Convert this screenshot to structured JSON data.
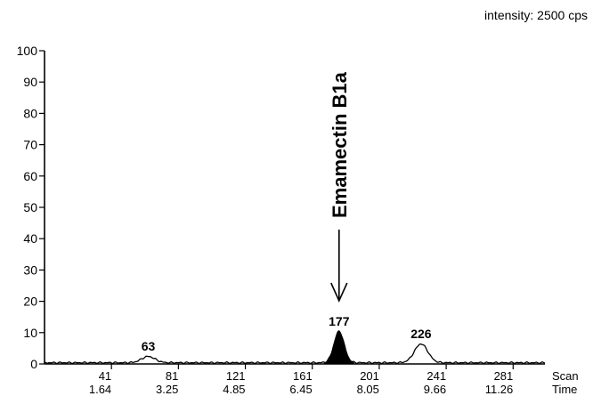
{
  "header": {
    "intensity": "intensity: 2500 cps"
  },
  "chart_data": {
    "type": "line",
    "title": "",
    "ylabel": "",
    "ylim": [
      0,
      100
    ],
    "yticks": [
      0,
      10,
      20,
      30,
      40,
      50,
      60,
      70,
      80,
      90,
      100
    ],
    "xlim": [
      1,
      300
    ],
    "xlabel_scan": "Scan",
    "xlabel_time": "Time",
    "xticks": [
      {
        "scan": 41,
        "scan_label": "41",
        "time_label": "1.64"
      },
      {
        "scan": 81,
        "scan_label": "81",
        "time_label": "3.25"
      },
      {
        "scan": 121,
        "scan_label": "121",
        "time_label": "4.85"
      },
      {
        "scan": 161,
        "scan_label": "161",
        "time_label": "6.45"
      },
      {
        "scan": 201,
        "scan_label": "201",
        "time_label": "8.05"
      },
      {
        "scan": 241,
        "scan_label": "241",
        "time_label": "9.66"
      },
      {
        "scan": 281,
        "scan_label": "281",
        "time_label": "11.26"
      }
    ],
    "series": [
      {
        "peaks": [
          {
            "scan": 63,
            "height": 2,
            "width": 4,
            "label": "63",
            "filled": false
          },
          {
            "scan": 177,
            "height": 10,
            "width": 3,
            "label": "177",
            "filled": true
          },
          {
            "scan": 226,
            "height": 6,
            "width": 4,
            "label": "226",
            "filled": false
          }
        ]
      }
    ],
    "annotations": [
      {
        "text": "Emamectin B1a",
        "target_scan": 177,
        "arrow": true
      }
    ]
  }
}
